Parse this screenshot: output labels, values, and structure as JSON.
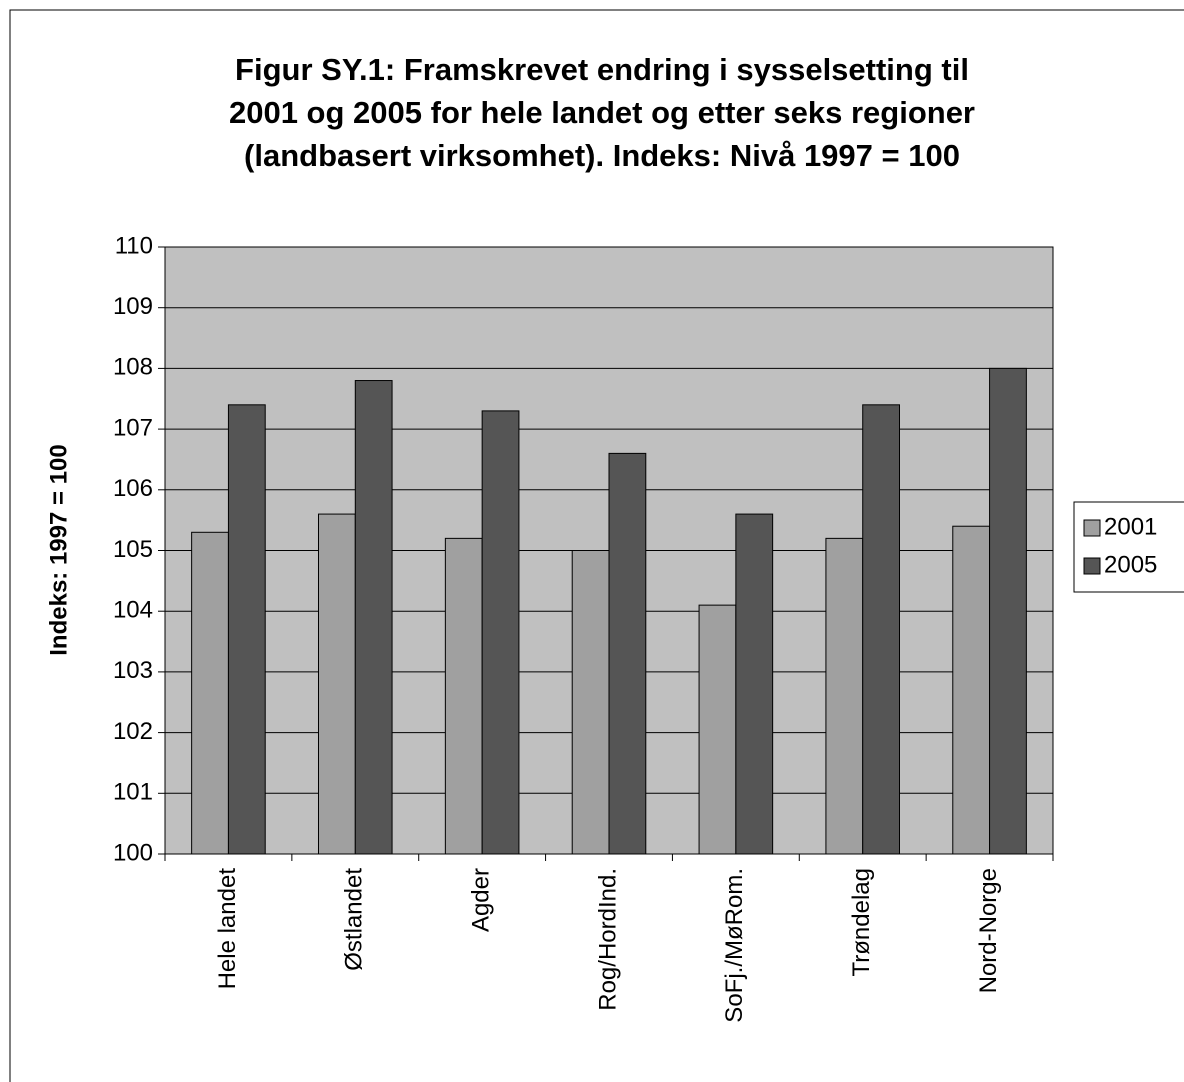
{
  "chart_data": {
    "type": "bar",
    "title": [
      "Figur SY.1: Framskrevet endring i sysselsetting til",
      "2001 og 2005 for hele landet og etter seks regioner",
      "(landbasert virksomhet).  Indeks: Nivå 1997 = 100"
    ],
    "y_label": "Indeks: 1997 = 100",
    "categories": [
      "Hele landet",
      "Østlandet",
      "Agder",
      "Rog/HordInd.",
      "SoFj./MøRom.",
      "Trøndelag",
      "Nord-Norge"
    ],
    "series": [
      {
        "name": "2001",
        "color": "#a0a0a0",
        "values": [
          105.3,
          105.6,
          105.2,
          105.0,
          104.1,
          105.2,
          105.4
        ]
      },
      {
        "name": "2005",
        "color": "#555555",
        "values": [
          107.4,
          107.8,
          107.3,
          106.6,
          105.6,
          107.4,
          108.0
        ]
      }
    ],
    "ylim": [
      100,
      110
    ],
    "yticks": [
      100,
      101,
      102,
      103,
      104,
      105,
      106,
      107,
      108,
      109,
      110
    ],
    "grid": true,
    "legend": "right"
  }
}
